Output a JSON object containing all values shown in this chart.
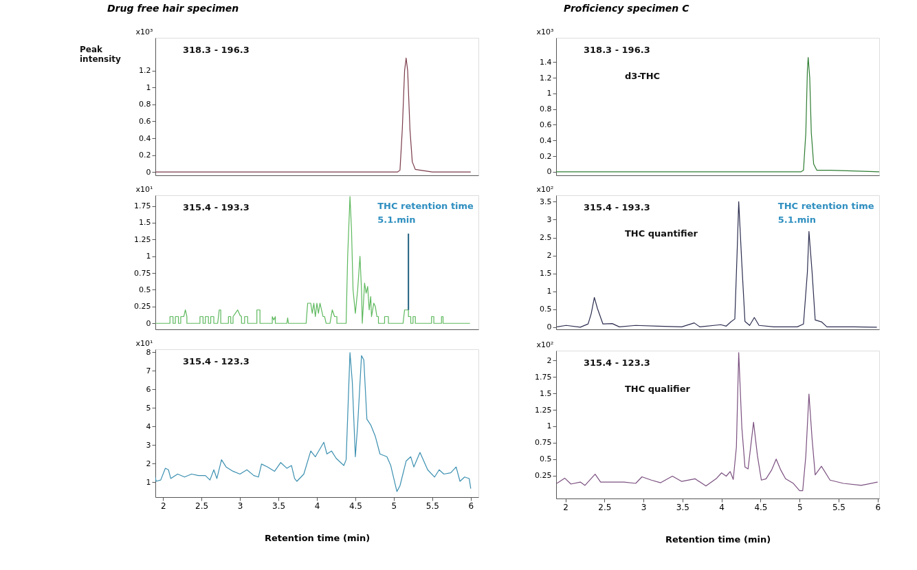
{
  "chart_data": [
    {
      "type": "line",
      "title": "Drug free hair specimen",
      "subtitle": "Peak intensity",
      "ylabel": "x10³",
      "xlim": [
        1.9,
        6.1
      ],
      "xticks": [
        2,
        2.5,
        3,
        3.5,
        4,
        4.5,
        5,
        5.5,
        6
      ],
      "ylim": [
        -0.04,
        1.59
      ],
      "yticks": [
        0,
        0.2,
        0.4,
        0.6,
        0.8,
        1,
        1.2
      ],
      "tick_labels": "y",
      "grid": false,
      "annotations": [
        "318.3 - 196.3"
      ],
      "x": [
        1.9,
        5.05,
        5.08,
        5.11,
        5.14,
        5.16,
        5.18,
        5.21,
        5.24,
        5.28,
        5.35,
        5.5,
        6.0
      ],
      "series": [
        {
          "color": "#7a3b4a",
          "values": [
            0,
            0,
            0.02,
            0.5,
            1.2,
            1.35,
            1.2,
            0.5,
            0.12,
            0.03,
            0.02,
            0,
            0
          ]
        }
      ]
    },
    {
      "type": "line",
      "ylabel": "x10¹",
      "xlim": [
        1.9,
        6.1
      ],
      "xticks": [
        2,
        2.5,
        3,
        3.5,
        4,
        4.5,
        5,
        5.5,
        6
      ],
      "ylim": [
        -0.09,
        1.91
      ],
      "yticks": [
        0,
        0.25,
        0.5,
        0.75,
        1,
        1.25,
        1.5,
        1.75
      ],
      "tick_labels": "y",
      "grid": false,
      "annotations": [
        "315.4 - 193.3",
        {
          "text": "THC retention time\n5.1.min",
          "x": 5.19,
          "y": 0.2
        }
      ],
      "x": [
        1.9,
        2.09,
        2.09,
        2.13,
        2.13,
        2.16,
        2.16,
        2.2,
        2.2,
        2.23,
        2.23,
        2.27,
        2.29,
        2.31,
        2.31,
        2.48,
        2.48,
        2.52,
        2.52,
        2.55,
        2.55,
        2.59,
        2.59,
        2.62,
        2.62,
        2.66,
        2.66,
        2.71,
        2.73,
        2.75,
        2.75,
        2.85,
        2.85,
        2.88,
        2.88,
        2.91,
        2.91,
        2.94,
        2.97,
        3.0,
        3.02,
        3.02,
        3.06,
        3.06,
        3.1,
        3.1,
        3.22,
        3.22,
        3.26,
        3.26,
        3.42,
        3.42,
        3.44,
        3.46,
        3.46,
        3.61,
        3.62,
        3.63,
        3.86,
        3.88,
        3.92,
        3.94,
        3.96,
        3.98,
        4.0,
        4.02,
        4.04,
        4.06,
        4.08,
        4.1,
        4.12,
        4.17,
        4.2,
        4.23,
        4.26,
        4.26,
        4.38,
        4.4,
        4.43,
        4.45,
        4.47,
        4.5,
        4.53,
        4.56,
        4.58,
        4.59,
        4.62,
        4.64,
        4.66,
        4.68,
        4.7,
        4.71,
        4.74,
        4.76,
        4.78,
        4.8,
        4.8,
        4.88,
        4.88,
        4.93,
        4.93,
        5.12,
        5.14,
        5.19,
        5.19,
        5.22,
        5.22,
        5.25,
        5.25,
        5.28,
        5.28,
        5.49,
        5.49,
        5.52,
        5.52,
        5.62,
        5.62,
        5.64,
        5.64,
        5.99
      ],
      "series": [
        {
          "color": "#5cb85c",
          "values": [
            0,
            0,
            0.1,
            0.1,
            0,
            0,
            0.1,
            0.1,
            0,
            0,
            0.1,
            0.1,
            0.2,
            0.1,
            0,
            0,
            0.1,
            0.1,
            0,
            0,
            0.1,
            0.1,
            0,
            0,
            0.1,
            0.1,
            0,
            0,
            0.2,
            0.2,
            0,
            0,
            0.1,
            0.1,
            0,
            0,
            0.1,
            0.15,
            0.2,
            0.12,
            0.1,
            0,
            0,
            0.1,
            0.1,
            0,
            0,
            0.2,
            0.2,
            0,
            0,
            0.1,
            0.05,
            0.1,
            0,
            0,
            0.08,
            0,
            0,
            0.3,
            0.3,
            0.15,
            0.3,
            0.1,
            0.3,
            0.15,
            0.3,
            0.2,
            0.1,
            0.1,
            0,
            0,
            0.2,
            0.1,
            0.1,
            0,
            0,
            1.0,
            1.89,
            1.4,
            0.5,
            0.15,
            0.5,
            1.0,
            0.5,
            0,
            0.6,
            0.45,
            0.55,
            0.2,
            0.4,
            0.1,
            0.3,
            0.25,
            0.1,
            0.1,
            0,
            0,
            0.1,
            0.1,
            0,
            0,
            0.2,
            0.2,
            0.1,
            0.1,
            0,
            0,
            0.1,
            0.1,
            0,
            0,
            0.1,
            0.1,
            0,
            0,
            0.1,
            0.1,
            0,
            0
          ]
        }
      ]
    },
    {
      "type": "line",
      "ylabel": "x10¹",
      "xlabel": "Retention time (min)",
      "xlim": [
        1.9,
        6.1
      ],
      "xticks": [
        2,
        2.5,
        3,
        3.5,
        4,
        4.5,
        5,
        5.5,
        6
      ],
      "ylim": [
        0.2,
        8.15
      ],
      "yticks": [
        1,
        2,
        3,
        4,
        5,
        6,
        7,
        8
      ],
      "grid": false,
      "annotations": [
        "315.4 - 123.3"
      ],
      "x": [
        1.9,
        1.91,
        1.97,
        2.03,
        2.07,
        2.1,
        2.19,
        2.28,
        2.37,
        2.46,
        2.55,
        2.61,
        2.66,
        2.7,
        2.76,
        2.82,
        2.91,
        3.0,
        3.09,
        3.18,
        3.24,
        3.28,
        3.36,
        3.45,
        3.53,
        3.61,
        3.67,
        3.71,
        3.74,
        3.83,
        3.92,
        3.98,
        4.09,
        4.13,
        4.19,
        4.25,
        4.35,
        4.38,
        4.43,
        4.46,
        4.5,
        4.53,
        4.58,
        4.61,
        4.65,
        4.7,
        4.76,
        4.82,
        4.91,
        4.96,
        5.04,
        5.08,
        5.16,
        5.22,
        5.26,
        5.34,
        5.44,
        5.53,
        5.59,
        5.65,
        5.74,
        5.81,
        5.86,
        5.92,
        5.98,
        6.0
      ],
      "series": [
        {
          "color": "#3a8fb0",
          "values": [
            1.28,
            1.05,
            1.12,
            1.75,
            1.67,
            1.2,
            1.44,
            1.28,
            1.44,
            1.36,
            1.36,
            1.12,
            1.67,
            1.2,
            2.21,
            1.82,
            1.59,
            1.44,
            1.67,
            1.36,
            1.28,
            1.98,
            1.82,
            1.59,
            2.06,
            1.75,
            1.9,
            1.2,
            1.05,
            1.44,
            2.68,
            2.37,
            3.15,
            2.52,
            2.68,
            2.29,
            1.9,
            2.21,
            7.97,
            6.41,
            2.37,
            4.08,
            7.81,
            7.58,
            4.39,
            4.08,
            3.46,
            2.52,
            2.37,
            1.9,
            0.5,
            0.81,
            2.14,
            2.37,
            1.82,
            2.6,
            1.67,
            1.28,
            1.67,
            1.44,
            1.51,
            1.82,
            1.05,
            1.28,
            1.2,
            0.66
          ]
        }
      ]
    },
    {
      "type": "line",
      "title": "Proficiency specimen C",
      "ylabel": "x10³",
      "xlim": [
        1.88,
        6.02
      ],
      "xticks": [
        2,
        2.5,
        3,
        3.5,
        4,
        4.5,
        5,
        5.5,
        6
      ],
      "ylim": [
        -0.045,
        1.71
      ],
      "yticks": [
        0,
        0.2,
        0.4,
        0.6,
        0.8,
        1,
        1.2,
        1.4
      ],
      "tick_labels": "y",
      "grid": false,
      "annotations": [
        "318.3 - 196.3",
        "d3-THC"
      ],
      "x": [
        1.88,
        5.02,
        5.05,
        5.08,
        5.1,
        5.11,
        5.13,
        5.15,
        5.18,
        5.22,
        5.4,
        6.02
      ],
      "series": [
        {
          "color": "#2e7d32",
          "values": [
            0,
            0,
            0.02,
            0.5,
            1.3,
            1.46,
            1.2,
            0.5,
            0.1,
            0.02,
            0.02,
            0
          ]
        }
      ]
    },
    {
      "type": "line",
      "ylabel": "x10²",
      "xlim": [
        1.88,
        6.02
      ],
      "xticks": [
        2,
        2.5,
        3,
        3.5,
        4,
        4.5,
        5,
        5.5,
        6
      ],
      "ylim": [
        -0.06,
        3.68
      ],
      "yticks": [
        0,
        0.5,
        1,
        1.5,
        2,
        2.5,
        3,
        3.5
      ],
      "tick_labels": "y",
      "grid": false,
      "annotations": [
        "315.4 - 193.3",
        "THC quantifier",
        {
          "text": "THC retention time\n5.1.min",
          "x": 5.12,
          "y": 2.67
        }
      ],
      "x": [
        1.89,
        2.01,
        2.19,
        2.29,
        2.33,
        2.37,
        2.41,
        2.48,
        2.6,
        2.69,
        2.9,
        3.19,
        3.49,
        3.65,
        3.72,
        3.99,
        4.06,
        4.12,
        4.17,
        4.2,
        4.22,
        4.26,
        4.3,
        4.36,
        4.42,
        4.48,
        4.67,
        4.97,
        5.05,
        5.1,
        5.12,
        5.16,
        5.2,
        5.28,
        5.35,
        5.7,
        5.99
      ],
      "series": [
        {
          "color": "#2b2d4f",
          "values": [
            0.01,
            0.05,
            0,
            0.09,
            0.38,
            0.83,
            0.52,
            0.09,
            0.1,
            0.01,
            0.05,
            0.03,
            0.01,
            0.12,
            0.01,
            0.07,
            0.03,
            0.15,
            0.23,
            2.12,
            3.5,
            1.76,
            0.16,
            0.05,
            0.27,
            0.05,
            0.01,
            0.01,
            0.09,
            1.54,
            2.67,
            1.54,
            0.2,
            0.15,
            0.01,
            0.01,
            0
          ]
        }
      ]
    },
    {
      "type": "line",
      "ylabel": "x10²",
      "xlabel": "Retention time (min)",
      "xlim": [
        1.88,
        6.02
      ],
      "xticks": [
        2,
        2.5,
        3,
        3.5,
        4,
        4.5,
        5,
        5.5,
        6
      ],
      "ylim": [
        -0.1,
        2.15
      ],
      "yticks": [
        0.25,
        0.5,
        0.75,
        1,
        1.25,
        1.5,
        1.75,
        2
      ],
      "grid": false,
      "annotations": [
        "315.4 - 123.3",
        "THC qualifier"
      ],
      "x": [
        1.89,
        1.99,
        2.07,
        2.19,
        2.25,
        2.38,
        2.45,
        2.6,
        2.75,
        2.9,
        2.98,
        3.1,
        3.22,
        3.37,
        3.49,
        3.66,
        3.8,
        3.93,
        4.0,
        4.06,
        4.11,
        4.15,
        4.19,
        4.22,
        4.26,
        4.3,
        4.34,
        4.41,
        4.46,
        4.51,
        4.57,
        4.64,
        4.7,
        4.76,
        4.82,
        4.92,
        5.0,
        5.04,
        5.08,
        5.12,
        5.16,
        5.2,
        5.28,
        5.39,
        5.56,
        5.79,
        6.0
      ],
      "series": [
        {
          "color": "#7a4f7f",
          "values": [
            0.13,
            0.21,
            0.12,
            0.15,
            0.1,
            0.27,
            0.15,
            0.15,
            0.15,
            0.13,
            0.23,
            0.18,
            0.14,
            0.24,
            0.16,
            0.2,
            0.09,
            0.2,
            0.29,
            0.24,
            0.31,
            0.19,
            0.68,
            2.12,
            0.98,
            0.38,
            0.35,
            1.06,
            0.55,
            0.18,
            0.2,
            0.33,
            0.5,
            0.33,
            0.2,
            0.13,
            0.02,
            0.02,
            0.55,
            1.49,
            0.81,
            0.26,
            0.39,
            0.18,
            0.13,
            0.1,
            0.15
          ]
        }
      ]
    }
  ]
}
